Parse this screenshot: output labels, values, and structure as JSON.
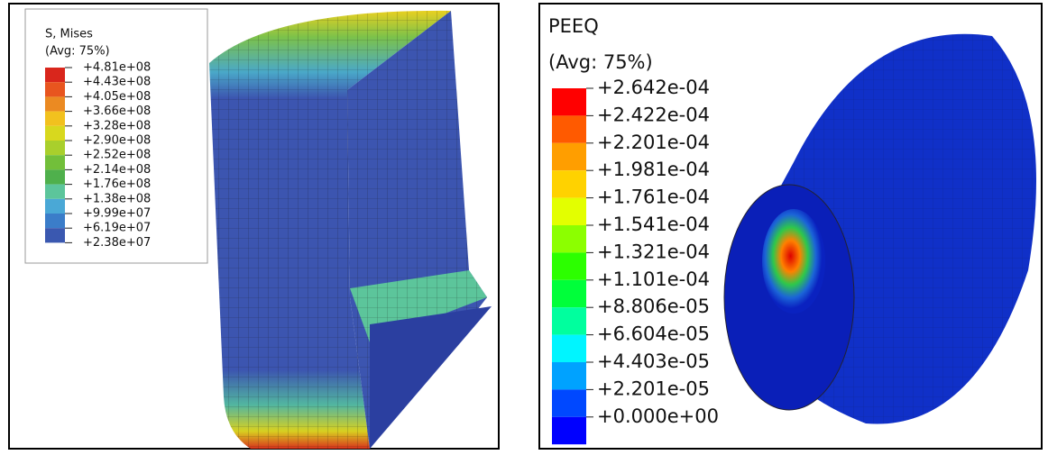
{
  "panels": [
    {
      "legend": {
        "title": "S, Mises",
        "subtitle": "(Avg: 75%)",
        "labels": [
          "+4.81e+08",
          "+4.43e+08",
          "+4.05e+08",
          "+3.66e+08",
          "+3.28e+08",
          "+2.90e+08",
          "+2.52e+08",
          "+2.14e+08",
          "+1.76e+08",
          "+1.38e+08",
          "+9.99e+07",
          "+6.19e+07",
          "+2.38e+07"
        ],
        "colors": [
          "#d9261c",
          "#e8551f",
          "#eb8a22",
          "#f2c11e",
          "#d8d81e",
          "#a9cf2c",
          "#72bf3a",
          "#4fb04c",
          "#5cc59b",
          "#4aa8d6",
          "#3b7dc9",
          "#3a58b0"
        ]
      }
    },
    {
      "legend": {
        "title": "PEEQ",
        "subtitle": "(Avg: 75%)",
        "labels": [
          "+2.642e-04",
          "+2.422e-04",
          "+2.201e-04",
          "+1.981e-04",
          "+1.761e-04",
          "+1.541e-04",
          "+1.321e-04",
          "+1.101e-04",
          "+8.806e-05",
          "+6.604e-05",
          "+4.403e-05",
          "+2.201e-05",
          "+0.000e+00"
        ],
        "colors": [
          "#ff0000",
          "#ff5a00",
          "#ff9e00",
          "#ffd200",
          "#e3ff00",
          "#8cff00",
          "#2cff00",
          "#00ff3a",
          "#00ff9e",
          "#00f5ff",
          "#00a2ff",
          "#0048ff",
          "#0000ff"
        ]
      }
    }
  ]
}
